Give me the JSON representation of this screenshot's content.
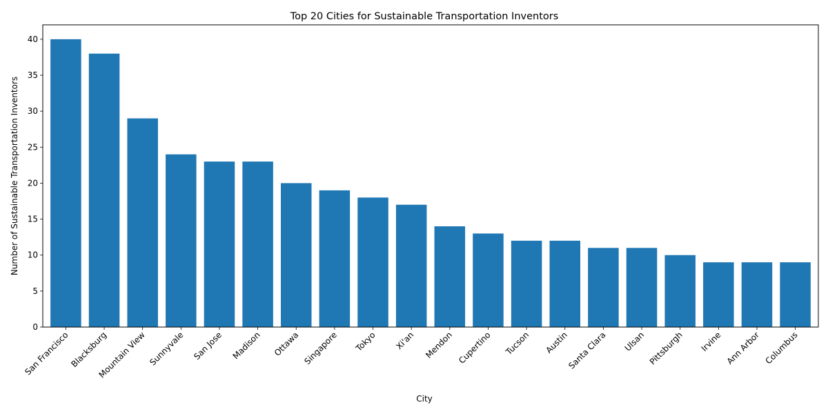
{
  "chart_data": {
    "type": "bar",
    "title": "Top 20 Cities for Sustainable Transportation Inventors",
    "xlabel": "City",
    "ylabel": "Number of Sustainable Transportation Inventors",
    "categories": [
      "San Francisco",
      "Blacksburg",
      "Mountain View",
      "Sunnyvale",
      "San Jose",
      "Madison",
      "Ottawa",
      "Singapore",
      "Tokyo",
      "Xi'an",
      "Mendon",
      "Cupertino",
      "Tucson",
      "Austin",
      "Santa Clara",
      "Ulsan",
      "Pittsburgh",
      "Irvine",
      "Ann Arbor",
      "Columbus"
    ],
    "values": [
      40,
      38,
      29,
      24,
      23,
      23,
      20,
      19,
      18,
      17,
      14,
      13,
      12,
      12,
      11,
      11,
      10,
      9,
      9,
      9
    ],
    "ylim": [
      0,
      42
    ],
    "yticks": [
      0,
      5,
      10,
      15,
      20,
      25,
      30,
      35,
      40
    ],
    "bar_color": "#1f77b4",
    "grid": false,
    "legend": "none"
  }
}
